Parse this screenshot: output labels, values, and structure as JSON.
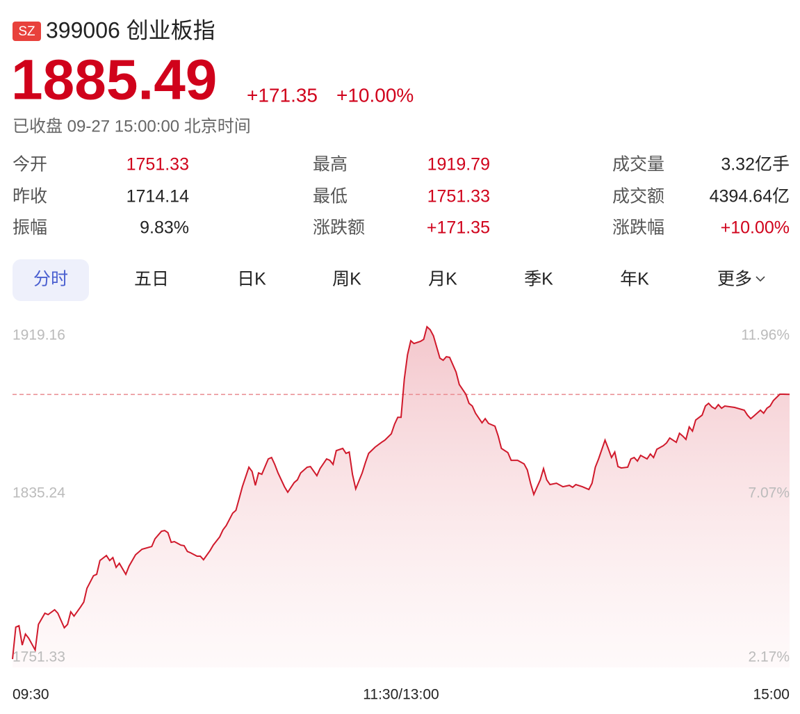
{
  "header": {
    "badge": "SZ",
    "name": "399006 创业板指",
    "price": "1885.49",
    "change": "+171.35",
    "change_percent": "+10.00%",
    "status": "已收盘 09-27 15:00:00 北京时间"
  },
  "stats": [
    {
      "label": "今开",
      "value": "1751.33",
      "color": "#d0021b"
    },
    {
      "label": "昨收",
      "value": "1714.14",
      "color": "#222222"
    },
    {
      "label": "振幅",
      "value": "9.83%",
      "color": "#222222"
    },
    {
      "label": "最高",
      "value": "1919.79",
      "color": "#d0021b"
    },
    {
      "label": "最低",
      "value": "1751.33",
      "color": "#d0021b"
    },
    {
      "label": "涨跌额",
      "value": "+171.35",
      "color": "#d0021b"
    },
    {
      "label": "成交量",
      "value": "3.32亿手",
      "color": "#222222"
    },
    {
      "label": "成交额",
      "value": "4394.64亿",
      "color": "#222222"
    },
    {
      "label": "涨跌幅",
      "value": "+10.00%",
      "color": "#d0021b"
    }
  ],
  "tabs": [
    {
      "label": "分时",
      "active": true
    },
    {
      "label": "五日",
      "active": false
    },
    {
      "label": "日K",
      "active": false
    },
    {
      "label": "周K",
      "active": false
    },
    {
      "label": "月K",
      "active": false
    },
    {
      "label": "季K",
      "active": false
    },
    {
      "label": "年K",
      "active": false
    },
    {
      "label": "更多",
      "active": false
    }
  ],
  "chart_data": {
    "type": "line",
    "color": "#d0192b",
    "reference_line": 1885.49,
    "xlim": [
      0,
      240
    ],
    "xticks": [
      {
        "value": 0,
        "label": "09:30"
      },
      {
        "value": 120,
        "label": "11:30/13:00"
      },
      {
        "value": 240,
        "label": "15:00"
      }
    ],
    "ylim": [
      1751.33,
      1919.79
    ],
    "yticks": [
      1751.33,
      1835.24,
      1919.16
    ],
    "y2lim": [
      2.17,
      12.0
    ],
    "y2ticks": [
      {
        "value": 2.17,
        "label": "2.17%"
      },
      {
        "value": 7.07,
        "label": "7.07%"
      },
      {
        "value": 11.96,
        "label": "11.96%"
      }
    ],
    "x": [
      0,
      1,
      2,
      3,
      4,
      5,
      7,
      8,
      10,
      11,
      13,
      14,
      16,
      17,
      18,
      19,
      21,
      22,
      23,
      25,
      26,
      27,
      29,
      30,
      31,
      32,
      33,
      35,
      36,
      38,
      40,
      43,
      44,
      46,
      47,
      48,
      49,
      50,
      52,
      53,
      54,
      55,
      57,
      58,
      59,
      61,
      62,
      64,
      65,
      66,
      68,
      69,
      70,
      71,
      73,
      74,
      75,
      76,
      77,
      79,
      80,
      81,
      82,
      84,
      85,
      87,
      88,
      89,
      91,
      92,
      94,
      95,
      97,
      98,
      99,
      100,
      102,
      103,
      104,
      105,
      106,
      108,
      109,
      110,
      112,
      114,
      115,
      117,
      118,
      119,
      120,
      121,
      122,
      123,
      124,
      126,
      127,
      128,
      129,
      130,
      132,
      133,
      134,
      135,
      137,
      138,
      140,
      141,
      142,
      143,
      145,
      146,
      147,
      149,
      150,
      151,
      153,
      154,
      156,
      158,
      159,
      160,
      161,
      163,
      164,
      165,
      166,
      168,
      170,
      172,
      173,
      174,
      176,
      178,
      179,
      180,
      181,
      183,
      184,
      185,
      186,
      187,
      188,
      190,
      191,
      192,
      193,
      194,
      196,
      197,
      198,
      199,
      201,
      202,
      203,
      205,
      206,
      207,
      208,
      209,
      210,
      211,
      213,
      214,
      215,
      216,
      217,
      218,
      219,
      220,
      223,
      226,
      227,
      228,
      229,
      231,
      232,
      233,
      234,
      235,
      237,
      238,
      240
    ],
    "values": [
      1751.33,
      1767.5,
      1768.2,
      1758.4,
      1764.0,
      1761.9,
      1755.9,
      1768.9,
      1774.6,
      1773.9,
      1776.3,
      1774.6,
      1767.2,
      1768.9,
      1775.3,
      1773.1,
      1777.7,
      1780.2,
      1787.2,
      1793.6,
      1794.3,
      1801.3,
      1803.8,
      1801.3,
      1802.8,
      1797.8,
      1799.9,
      1794.3,
      1798.5,
      1804.2,
      1807.0,
      1808.4,
      1812.3,
      1816.1,
      1816.5,
      1815.4,
      1810.5,
      1810.9,
      1809.1,
      1808.8,
      1805.9,
      1805.2,
      1803.5,
      1803.5,
      1801.7,
      1806.3,
      1809.1,
      1813.3,
      1816.8,
      1819.0,
      1825.3,
      1826.7,
      1832.7,
      1838.7,
      1848.6,
      1846.4,
      1839.4,
      1845.7,
      1845.0,
      1852.8,
      1853.5,
      1850.0,
      1845.7,
      1838.7,
      1835.9,
      1840.8,
      1842.2,
      1845.7,
      1848.6,
      1848.9,
      1844.3,
      1847.9,
      1852.8,
      1852.1,
      1850.0,
      1857.0,
      1858.1,
      1855.6,
      1856.3,
      1845.0,
      1837.6,
      1845.7,
      1851.0,
      1855.6,
      1858.8,
      1861.2,
      1862.3,
      1865.5,
      1870.4,
      1873.9,
      1873.9,
      1893.3,
      1905.6,
      1912.7,
      1911.3,
      1912.4,
      1913.4,
      1919.79,
      1918.3,
      1915.2,
      1903.9,
      1902.8,
      1904.6,
      1904.3,
      1896.8,
      1890.5,
      1885.6,
      1881.0,
      1879.6,
      1876.0,
      1871.1,
      1873.2,
      1870.8,
      1869.4,
      1864.4,
      1858.1,
      1856.0,
      1852.1,
      1852.1,
      1850.3,
      1847.2,
      1840.5,
      1834.8,
      1842.2,
      1847.9,
      1842.2,
      1839.8,
      1840.5,
      1838.7,
      1839.4,
      1838.4,
      1839.8,
      1838.7,
      1837.3,
      1840.5,
      1848.6,
      1852.8,
      1862.3,
      1858.1,
      1853.5,
      1856.3,
      1848.9,
      1848.2,
      1848.6,
      1852.8,
      1853.5,
      1851.7,
      1854.6,
      1852.8,
      1855.3,
      1853.5,
      1857.7,
      1859.5,
      1860.9,
      1863.4,
      1861.2,
      1865.8,
      1864.4,
      1862.7,
      1869.0,
      1866.9,
      1872.5,
      1875.0,
      1879.6,
      1881.0,
      1879.2,
      1878.2,
      1880.3,
      1878.5,
      1879.6,
      1878.9,
      1877.5,
      1875.0,
      1873.2,
      1874.6,
      1877.5,
      1876.0,
      1878.5,
      1879.6,
      1882.4,
      1885.6,
      1885.6,
      1885.49
    ]
  }
}
